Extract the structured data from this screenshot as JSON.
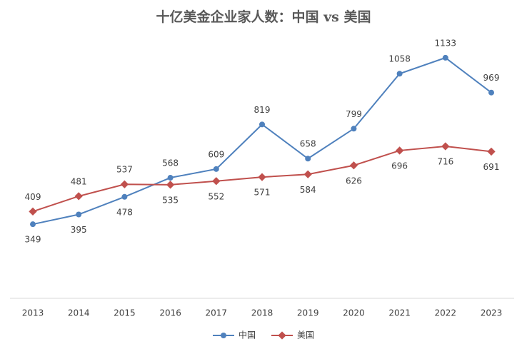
{
  "chart_data": {
    "type": "line",
    "title": "十亿美金企业家人数：中国 vs 美国",
    "categories": [
      "2013",
      "2014",
      "2015",
      "2016",
      "2017",
      "2018",
      "2019",
      "2020",
      "2021",
      "2022",
      "2023"
    ],
    "series": [
      {
        "name": "中国",
        "color": "#4f81bd",
        "values": [
          349,
          395,
          478,
          568,
          609,
          819,
          658,
          799,
          1058,
          1133,
          969
        ]
      },
      {
        "name": "美国",
        "color": "#c0504d",
        "values": [
          409,
          481,
          537,
          535,
          552,
          571,
          584,
          626,
          696,
          716,
          691
        ]
      }
    ],
    "ylim": [
      0,
      1200
    ],
    "legend": "bottom"
  }
}
